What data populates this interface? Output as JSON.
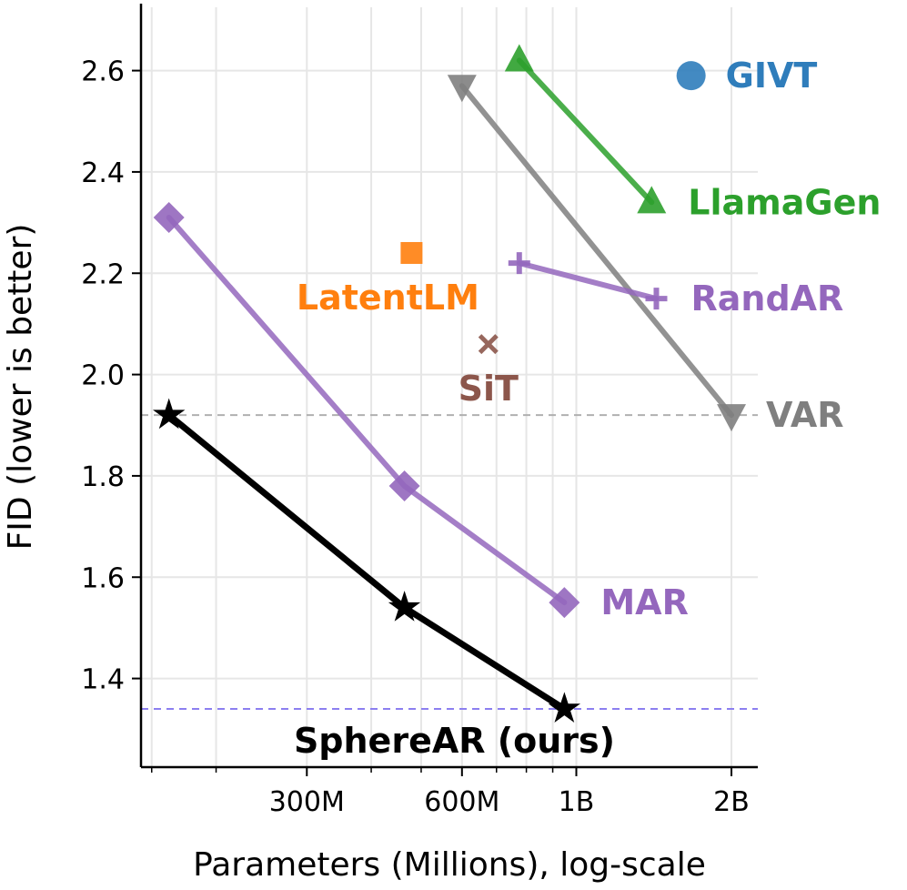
{
  "chart_data": {
    "type": "line",
    "xlabel": "Parameters (Millions), log-scale",
    "ylabel": "FID (lower is better)",
    "xscale": "log",
    "xlim": [
      143,
      2250
    ],
    "ylim": [
      1.225,
      2.725
    ],
    "grid": true,
    "x_ticks": [
      {
        "value": 300,
        "label": "300M"
      },
      {
        "value": 600,
        "label": "600M"
      },
      {
        "value": 1000,
        "label": "1B"
      },
      {
        "value": 2000,
        "label": "2B"
      }
    ],
    "x_minor_ticks": [
      150,
      200,
      400,
      500,
      700,
      800,
      900
    ],
    "y_ticks": [
      {
        "value": 1.4,
        "label": "1.4"
      },
      {
        "value": 1.6,
        "label": "1.6"
      },
      {
        "value": 1.8,
        "label": "1.8"
      },
      {
        "value": 2.0,
        "label": "2.0"
      },
      {
        "value": 2.2,
        "label": "2.2"
      },
      {
        "value": 2.4,
        "label": "2.4"
      },
      {
        "value": 2.6,
        "label": "2.6"
      }
    ],
    "reference_lines": [
      {
        "y": 1.92,
        "color": "#b0b0b0",
        "style": "dashed"
      },
      {
        "y": 1.34,
        "color": "#8c7ff0",
        "style": "dashed"
      }
    ],
    "series": [
      {
        "name": "GIVT",
        "color": "#2f7dbb",
        "marker": "circle",
        "x": [
          1670
        ],
        "y": [
          2.59
        ]
      },
      {
        "name": "LlamaGen",
        "color": "#2ca02c",
        "marker": "triangle-up",
        "x": [
          775,
          1400
        ],
        "y": [
          2.62,
          2.34
        ]
      },
      {
        "name": "VAR",
        "color": "#7f7f7f",
        "marker": "triangle-down",
        "x": [
          600,
          2000
        ],
        "y": [
          2.57,
          1.92
        ]
      },
      {
        "name": "RandAR",
        "color": "#9467bd",
        "marker": "plus",
        "x": [
          775,
          1430
        ],
        "y": [
          2.22,
          2.15
        ]
      },
      {
        "name": "LatentLM",
        "color": "#ff7f0e",
        "marker": "square",
        "x": [
          479
        ],
        "y": [
          2.24
        ]
      },
      {
        "name": "SiT",
        "color": "#8c564b",
        "marker": "x",
        "x": [
          675
        ],
        "y": [
          2.06
        ]
      },
      {
        "name": "MAR",
        "color": "#9467bd",
        "marker": "diamond",
        "x": [
          162,
          464,
          948
        ],
        "y": [
          2.31,
          1.78,
          1.55
        ]
      },
      {
        "name": "SphereAR (ours)",
        "color": "#000000",
        "marker": "star",
        "x": [
          162,
          464,
          948
        ],
        "y": [
          1.92,
          1.54,
          1.34
        ]
      }
    ]
  }
}
